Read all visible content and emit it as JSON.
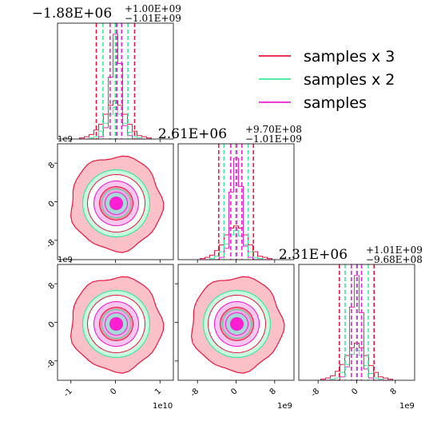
{
  "chart_data": {
    "type": "corner",
    "parameters": 3,
    "legend": {
      "placement": "top-right",
      "entries": [
        {
          "label": "samples x 3",
          "color": "#e8163c"
        },
        {
          "label": "samples x 2",
          "color": "#3de89a"
        },
        {
          "label": "samples",
          "color": "#ee1ed2"
        }
      ]
    },
    "colors": {
      "series1": "#e8163c",
      "series2": "#3de89a",
      "series3": "#ee1ed2"
    },
    "titles": [
      {
        "base": "-1.88E+06",
        "plus": "+1.00E+09",
        "minus": "-1.01E+09"
      },
      {
        "base": "2.61E+06",
        "plus": "+9.70E+08",
        "minus": "-1.01E+09"
      },
      {
        "base": "2.31E+06",
        "plus": "+1.01E+09",
        "minus": "-9.68E+08"
      }
    ],
    "axes": {
      "p0": {
        "range": [
          -13000000000.0,
          13000000000.0
        ],
        "ticks": [
          -10000000000.0,
          0,
          10000000000.0
        ],
        "tick_labels": [
          "-1",
          "0",
          "1"
        ],
        "offset": "1e10"
      },
      "p1": {
        "range": [
          -1200000000.0,
          1200000000.0
        ],
        "ticks": [
          -800000000.0,
          0,
          800000000.0
        ],
        "tick_labels": [
          "-8",
          "0",
          "8"
        ],
        "offset": "1e9"
      },
      "p2": {
        "range": [
          -1200000000.0,
          1200000000.0
        ],
        "ticks": [
          -800000000.0,
          0,
          800000000.0
        ],
        "tick_labels": [
          "-8",
          "0",
          "8"
        ],
        "offset": "1e9"
      }
    },
    "quantile_lines": {
      "p0": [
        [
          -4300000000.0,
          0,
          4300000000.0
        ],
        [
          -2800000000.0,
          0,
          2800000000.0
        ],
        [
          -1200000000.0,
          300000000.0,
          1400000000.0
        ]
      ],
      "p1": [
        [
          -360000000.0,
          0,
          360000000.0
        ],
        [
          -250000000.0,
          0,
          250000000.0
        ],
        [
          -110000000.0,
          10000000.0,
          120000000.0
        ]
      ],
      "p2": [
        [
          -360000000.0,
          0,
          360000000.0
        ],
        [
          -240000000.0,
          0,
          240000000.0
        ],
        [
          -110000000.0,
          10000000.0,
          100000000.0
        ]
      ]
    },
    "histograms": {
      "p0": {
        "series1": [
          0.01,
          0.02,
          0.04,
          0.08,
          0.13,
          0.22,
          0.3,
          0.34,
          0.3,
          0.22,
          0.13,
          0.07,
          0.03,
          0.02,
          0.01
        ],
        "series2": [
          0.0,
          0.0,
          0.01,
          0.02,
          0.07,
          0.14,
          0.22,
          0.28,
          0.22,
          0.14,
          0.06,
          0.02,
          0.01,
          0.0,
          0.0
        ],
        "series3": [
          0.0,
          0.0,
          0.0,
          0.0,
          0.02,
          0.1,
          0.55,
          0.93,
          0.67,
          0.12,
          0.03,
          0.0,
          0.0,
          0.0,
          0.0
        ]
      },
      "p1": {
        "series1": [
          0.01,
          0.02,
          0.04,
          0.08,
          0.13,
          0.22,
          0.28,
          0.3,
          0.28,
          0.22,
          0.13,
          0.07,
          0.03,
          0.02,
          0.01
        ],
        "series2": [
          0.0,
          0.0,
          0.01,
          0.03,
          0.07,
          0.14,
          0.22,
          0.26,
          0.21,
          0.13,
          0.07,
          0.02,
          0.01,
          0.0,
          0.0
        ],
        "series3": [
          0.0,
          0.0,
          0.0,
          0.0,
          0.02,
          0.1,
          0.6,
          0.9,
          0.65,
          0.12,
          0.02,
          0.0,
          0.0,
          0.0,
          0.0
        ]
      },
      "p2": {
        "series1": [
          0.01,
          0.02,
          0.04,
          0.08,
          0.14,
          0.22,
          0.29,
          0.33,
          0.29,
          0.22,
          0.13,
          0.07,
          0.03,
          0.02,
          0.01
        ],
        "series2": [
          0.0,
          0.0,
          0.01,
          0.02,
          0.07,
          0.14,
          0.23,
          0.27,
          0.22,
          0.13,
          0.06,
          0.02,
          0.01,
          0.0,
          0.0
        ],
        "series3": [
          0.0,
          0.0,
          0.0,
          0.0,
          0.03,
          0.12,
          0.65,
          0.93,
          0.6,
          0.1,
          0.02,
          0.0,
          0.0,
          0.0,
          0.0
        ]
      }
    }
  }
}
